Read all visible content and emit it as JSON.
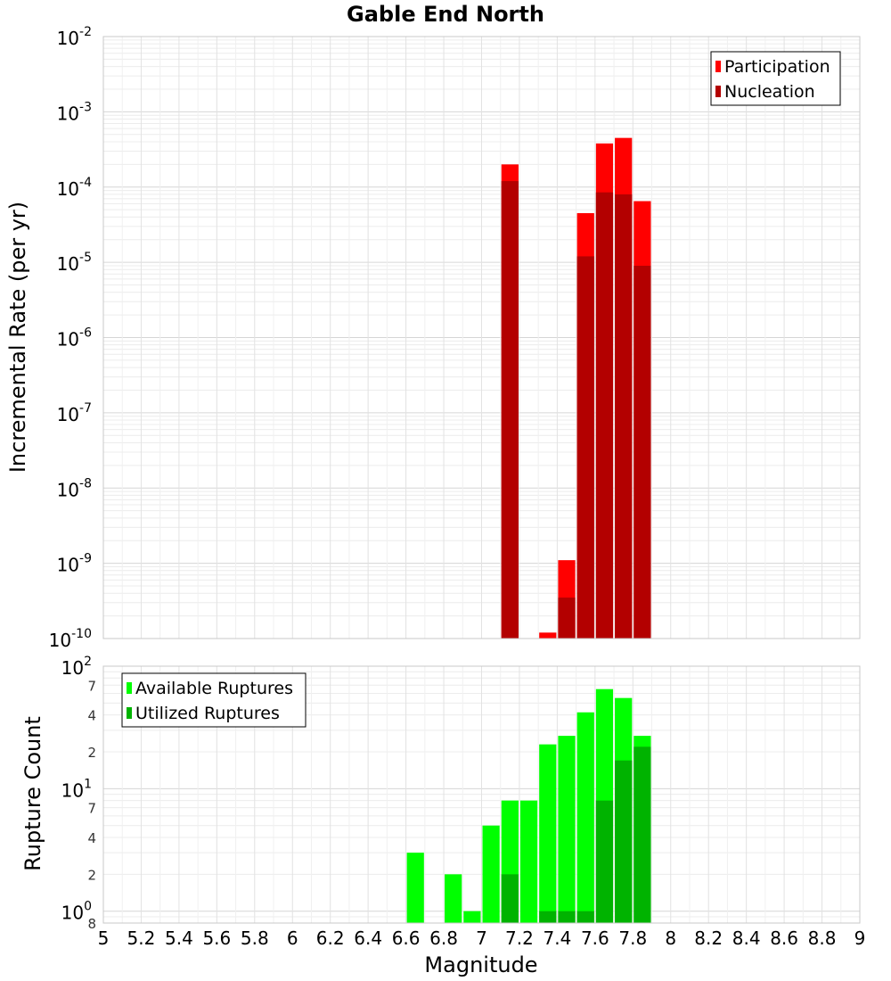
{
  "title": "Gable End North",
  "xlabel": "Magnitude",
  "x_ticks": [
    "5",
    "5.2",
    "5.4",
    "5.6",
    "5.8",
    "6",
    "6.2",
    "6.4",
    "6.6",
    "6.8",
    "7",
    "7.2",
    "7.4",
    "7.6",
    "7.8",
    "8",
    "8.2",
    "8.4",
    "8.6",
    "8.8",
    "9"
  ],
  "chart_data": [
    {
      "type": "bar",
      "ylabel": "Incremental Rate (per yr)",
      "scale": "log",
      "xlim": [
        5,
        9
      ],
      "ylim": [
        1e-10,
        0.01
      ],
      "y_ticks": [
        {
          "base": "10",
          "exp": "-2"
        },
        {
          "base": "10",
          "exp": "-3"
        },
        {
          "base": "10",
          "exp": "-4"
        },
        {
          "base": "10",
          "exp": "-5"
        },
        {
          "base": "10",
          "exp": "-6"
        },
        {
          "base": "10",
          "exp": "-7"
        },
        {
          "base": "10",
          "exp": "-8"
        },
        {
          "base": "10",
          "exp": "-9"
        },
        {
          "base": "10",
          "exp": "-10"
        }
      ],
      "legend_position": "top-right",
      "colors": {
        "Participation": "#ff0000",
        "Nucleation": "#b30000"
      },
      "series": [
        {
          "name": "Participation",
          "x": [
            7.15,
            7.35,
            7.45,
            7.55,
            7.65,
            7.75,
            7.85
          ],
          "values": [
            0.0002,
            1.2e-10,
            1.1e-09,
            4.5e-05,
            0.00038,
            0.00045,
            6.5e-05
          ]
        },
        {
          "name": "Nucleation",
          "x": [
            7.15,
            7.45,
            7.55,
            7.65,
            7.75,
            7.85
          ],
          "values": [
            0.00012,
            3.5e-10,
            1.2e-05,
            8.5e-05,
            8e-05,
            9e-06
          ]
        }
      ]
    },
    {
      "type": "bar",
      "ylabel": "Rupture Count",
      "scale": "log",
      "xlim": [
        5,
        9
      ],
      "ylim": [
        0.8,
        100
      ],
      "y_ticks": [
        {
          "base": "10",
          "exp": "2",
          "value": 100
        },
        {
          "base": "10",
          "exp": "1",
          "value": 10
        },
        {
          "base": "10",
          "exp": "0",
          "value": 1
        }
      ],
      "y_minor_labels": [
        {
          "label": "7",
          "value": 70
        },
        {
          "label": "4",
          "value": 40
        },
        {
          "label": "2",
          "value": 20
        },
        {
          "label": "7",
          "value": 7
        },
        {
          "label": "4",
          "value": 4
        },
        {
          "label": "2",
          "value": 2
        },
        {
          "label": "8",
          "value": 0.8
        }
      ],
      "legend_position": "top-left",
      "colors": {
        "Available Ruptures": "#00ff00",
        "Utilized Ruptures": "#00b300"
      },
      "series": [
        {
          "name": "Available Ruptures",
          "x": [
            6.65,
            6.85,
            6.95,
            7.05,
            7.15,
            7.25,
            7.35,
            7.45,
            7.55,
            7.65,
            7.75,
            7.85
          ],
          "values": [
            3,
            2,
            1,
            5,
            8,
            8,
            23,
            27,
            42,
            65,
            55,
            27
          ]
        },
        {
          "name": "Utilized Ruptures",
          "x": [
            7.15,
            7.35,
            7.45,
            7.55,
            7.65,
            7.75,
            7.85
          ],
          "values": [
            2,
            1,
            1,
            1,
            8,
            17,
            22
          ]
        }
      ]
    }
  ]
}
